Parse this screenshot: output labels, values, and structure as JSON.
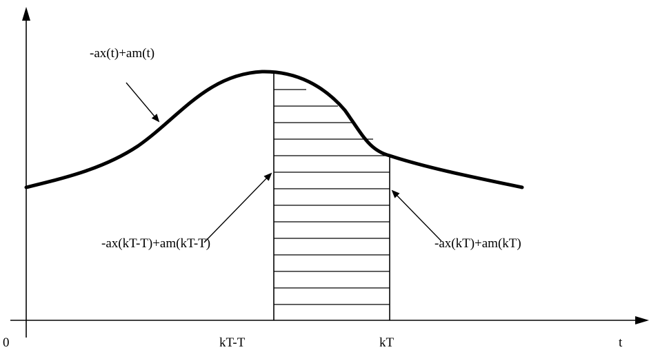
{
  "diagram": {
    "labels": {
      "curve": "-ax(t)+am(t)",
      "left_value": "-ax(kT-T)+am(kT-T)",
      "right_value": "-ax(kT)+am(kT)",
      "origin": "0",
      "tick_left": "kT-T",
      "tick_right": "kT",
      "axis_t": "t"
    },
    "colors": {
      "ink": "#000000",
      "background": "#ffffff"
    }
  }
}
